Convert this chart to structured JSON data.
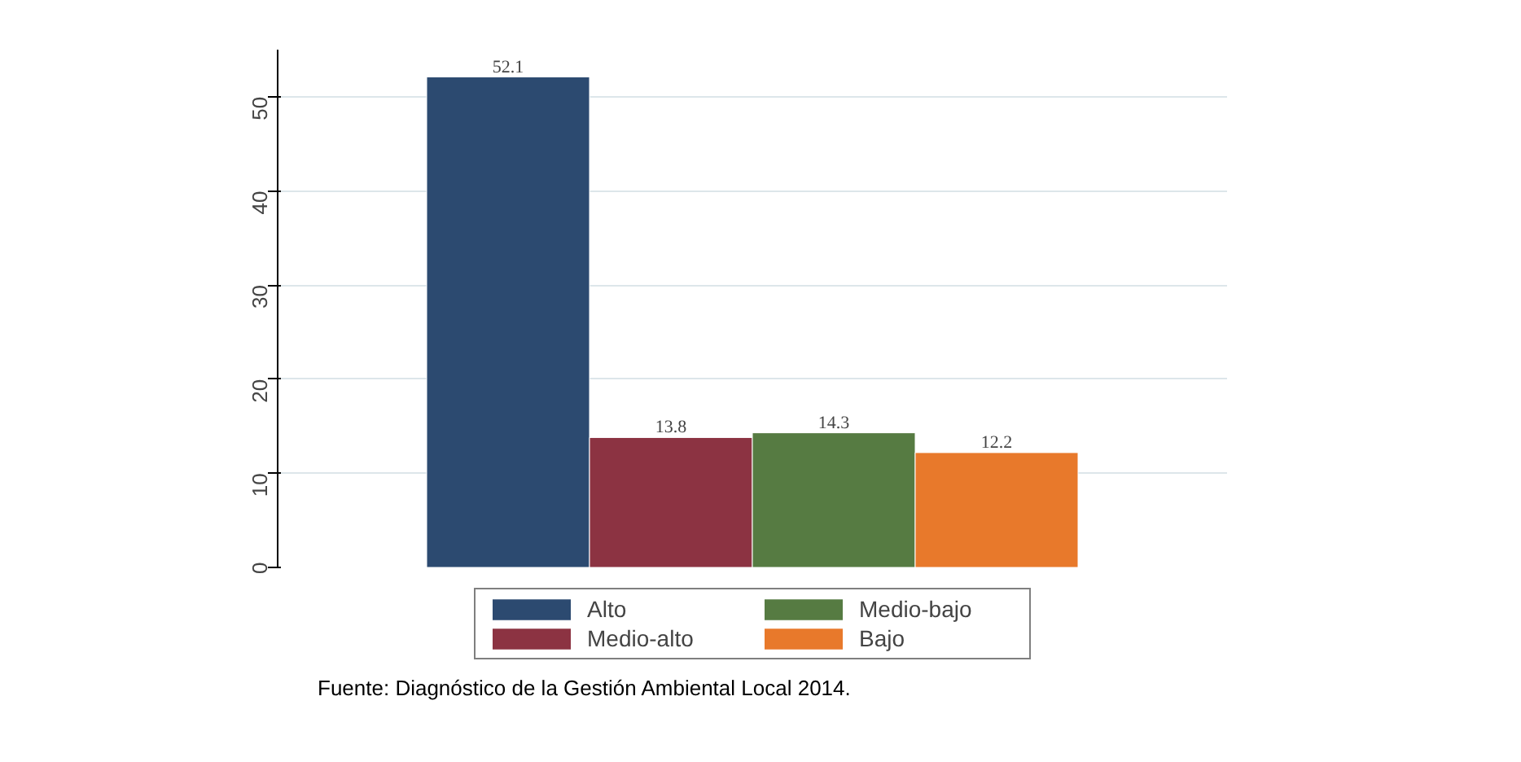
{
  "chart_data": {
    "type": "bar",
    "categories": [
      null
    ],
    "series": [
      {
        "name": "Alto",
        "color": "#2c4a70",
        "values": [
          52.1
        ]
      },
      {
        "name": "Medio-alto",
        "color": "#8c3342",
        "values": [
          13.8
        ]
      },
      {
        "name": "Medio-bajo",
        "color": "#567b42",
        "values": [
          14.3
        ]
      },
      {
        "name": "Bajo",
        "color": "#e8792b",
        "values": [
          12.2
        ]
      }
    ],
    "ylim": [
      0,
      55
    ],
    "yticks": [
      0,
      10,
      20,
      30,
      40,
      50
    ],
    "grid": "y",
    "legend": "bottom",
    "data_labels": true,
    "annotations": [
      "Fuente: Diagnóstico de la Gestión Ambiental Local 2014."
    ]
  }
}
